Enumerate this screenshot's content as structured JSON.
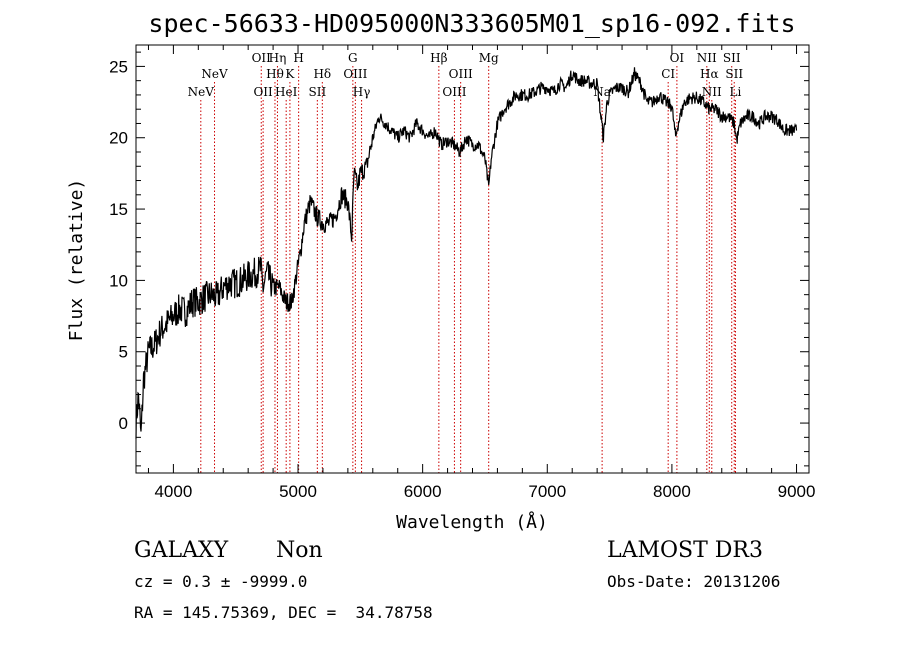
{
  "chart_data": {
    "type": "line",
    "title": "spec-56633-HD095000N333605M01_sp16-092.fits",
    "xlabel": "Wavelength (Å)",
    "ylabel": "Flux (relative)",
    "xlim": [
      3700,
      9100
    ],
    "ylim": [
      -3.5,
      26.5
    ],
    "xticks": [
      "4000",
      "5000",
      "6000",
      "7000",
      "8000",
      "9000"
    ],
    "yticks": [
      "0",
      "5",
      "10",
      "15",
      "20",
      "25"
    ],
    "series": [
      {
        "name": "flux",
        "x": [
          3700,
          3720,
          3740,
          3760,
          3780,
          3800,
          3850,
          3900,
          3950,
          4000,
          4050,
          4100,
          4150,
          4200,
          4250,
          4300,
          4350,
          4400,
          4450,
          4500,
          4550,
          4600,
          4650,
          4700,
          4720,
          4750,
          4800,
          4850,
          4900,
          4950,
          5000,
          5020,
          5050,
          5100,
          5150,
          5200,
          5250,
          5300,
          5350,
          5400,
          5430,
          5450,
          5480,
          5500,
          5550,
          5600,
          5650,
          5700,
          5750,
          5800,
          5850,
          5900,
          5950,
          6000,
          6050,
          6100,
          6150,
          6200,
          6250,
          6300,
          6350,
          6400,
          6450,
          6500,
          6530,
          6550,
          6600,
          6650,
          6700,
          6750,
          6800,
          6850,
          6900,
          6950,
          7000,
          7050,
          7100,
          7150,
          7200,
          7250,
          7300,
          7350,
          7400,
          7430,
          7450,
          7480,
          7500,
          7550,
          7600,
          7650,
          7700,
          7750,
          7800,
          7850,
          7900,
          7950,
          8000,
          8030,
          8050,
          8100,
          8150,
          8200,
          8250,
          8300,
          8350,
          8400,
          8450,
          8500,
          8520,
          8550,
          8600,
          8650,
          8700,
          8750,
          8800,
          8850,
          8900,
          8950,
          9000
        ],
        "values": [
          0,
          2,
          -1,
          3,
          4,
          5,
          5.5,
          6.5,
          7,
          7.5,
          8,
          7.8,
          8.5,
          8.5,
          8.8,
          9,
          8.8,
          9.5,
          9.8,
          9.8,
          10,
          10.3,
          10.5,
          10.8,
          9.5,
          10.5,
          9.5,
          9.5,
          8.5,
          8.5,
          11,
          12,
          14,
          15.5,
          14.5,
          14,
          14,
          14.5,
          16,
          15.5,
          13,
          17.5,
          16.5,
          17.5,
          18,
          20,
          21.5,
          21,
          20.5,
          20,
          20.5,
          20,
          21,
          20.5,
          20,
          20.5,
          19.5,
          19.8,
          19.5,
          19,
          20,
          19.5,
          19.5,
          18.5,
          16.5,
          18.5,
          21,
          22,
          22.5,
          23,
          23,
          23,
          23.2,
          23.5,
          23.5,
          23.2,
          23.8,
          23.5,
          24.5,
          24,
          24,
          23.8,
          23.8,
          21.5,
          20,
          22.5,
          23,
          23.5,
          23.5,
          23.2,
          24.5,
          23.8,
          22.5,
          22.5,
          23,
          22.5,
          22.2,
          20,
          21,
          22.5,
          22.8,
          22.8,
          22.5,
          22,
          22,
          21.5,
          21.5,
          21,
          19.8,
          21,
          21.5,
          21.5,
          21,
          21.5,
          21.5,
          21.2,
          20.5,
          20.5,
          20.5
        ]
      }
    ],
    "lines": [
      {
        "x": 4220,
        "label": "NeV",
        "row": 3
      },
      {
        "x": 4330,
        "label": "NeV",
        "row": 2
      },
      {
        "x": 4705,
        "label": "OII",
        "row": 1
      },
      {
        "x": 4720,
        "label": "OII",
        "row": 3
      },
      {
        "x": 4815,
        "label": "Hθ",
        "row": 2
      },
      {
        "x": 4835,
        "label": "Hη",
        "row": 1
      },
      {
        "x": 4905,
        "label": "HeI",
        "row": 3
      },
      {
        "x": 4935,
        "label": "K",
        "row": 2
      },
      {
        "x": 5005,
        "label": "H",
        "row": 1
      },
      {
        "x": 5155,
        "label": "SII",
        "row": 3
      },
      {
        "x": 5195,
        "label": "Hδ",
        "row": 2
      },
      {
        "x": 5440,
        "label": "G",
        "row": 1
      },
      {
        "x": 5460,
        "label": "OIII",
        "row": 2
      },
      {
        "x": 5510,
        "label": "Hγ",
        "row": 3
      },
      {
        "x": 6130,
        "label": "Hβ",
        "row": 1
      },
      {
        "x": 6255,
        "label": "OIII",
        "row": 3
      },
      {
        "x": 6305,
        "label": "OIII",
        "row": 2
      },
      {
        "x": 6530,
        "label": "Mg",
        "row": 1
      },
      {
        "x": 7440,
        "label": "Na",
        "row": 3
      },
      {
        "x": 7970,
        "label": "CI",
        "row": 2
      },
      {
        "x": 8040,
        "label": "OI",
        "row": 1
      },
      {
        "x": 8280,
        "label": "NII",
        "row": 1
      },
      {
        "x": 8300,
        "label": "Hα",
        "row": 2
      },
      {
        "x": 8320,
        "label": "NII",
        "row": 3
      },
      {
        "x": 8480,
        "label": "SII",
        "row": 1
      },
      {
        "x": 8500,
        "label": "SII",
        "row": 2
      },
      {
        "x": 8510,
        "label": "Li",
        "row": 3
      }
    ],
    "line_color": "#cc0000",
    "spectrum_color": "#000000"
  },
  "info": {
    "class": "GALAXY",
    "subclass": "Non",
    "cz": "cz = 0.3 ± -9999.0",
    "coords": "RA = 145.75369, DEC =  34.78758",
    "survey": "LAMOST DR3",
    "obs_date": "Obs-Date: 20131206"
  }
}
